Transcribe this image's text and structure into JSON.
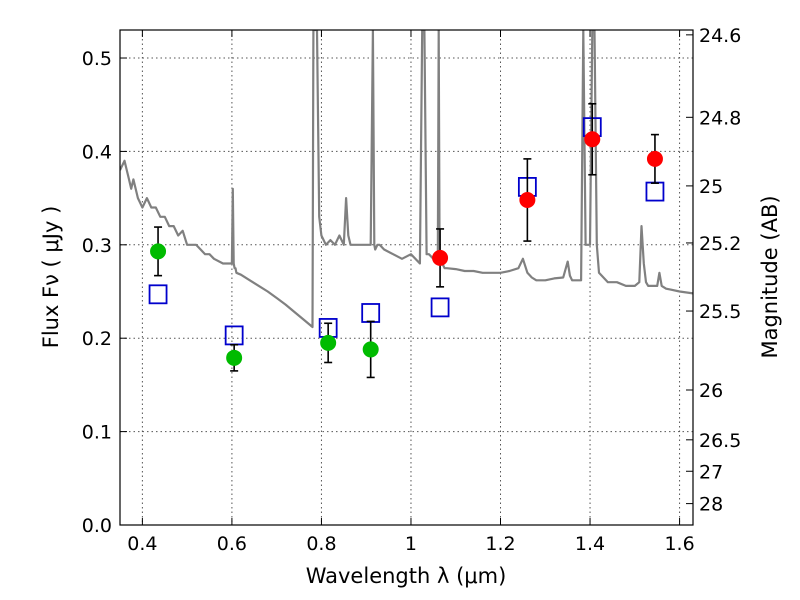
{
  "chart_data": {
    "type": "scatter",
    "xlabel": "Wavelength  λ (μm)",
    "ylabel": "Flux  Fν  ( μJy )",
    "y2label": "Magnitude (AB)",
    "xlim": [
      0.35,
      1.63
    ],
    "ylim": [
      0.0,
      0.53
    ],
    "grid": true,
    "x_ticks": [
      {
        "value": 0.4,
        "label": "0.4"
      },
      {
        "value": 0.6,
        "label": "0.6"
      },
      {
        "value": 0.8,
        "label": "0.8"
      },
      {
        "value": 1.0,
        "label": "1"
      },
      {
        "value": 1.2,
        "label": "1.2"
      },
      {
        "value": 1.4,
        "label": "1.4"
      },
      {
        "value": 1.6,
        "label": "1.6"
      }
    ],
    "y_ticks": [
      {
        "value": 0.0,
        "label": "0.0"
      },
      {
        "value": 0.1,
        "label": "0.1"
      },
      {
        "value": 0.2,
        "label": "0.2"
      },
      {
        "value": 0.3,
        "label": "0.3"
      },
      {
        "value": 0.4,
        "label": "0.4"
      },
      {
        "value": 0.5,
        "label": "0.5"
      }
    ],
    "y2_ticks": [
      {
        "value": 24.6,
        "label": "24.6"
      },
      {
        "value": 24.8,
        "label": "24.8"
      },
      {
        "value": 25.0,
        "label": "25"
      },
      {
        "value": 25.2,
        "label": "25.2"
      },
      {
        "value": 25.5,
        "label": "25.5"
      },
      {
        "value": 26.0,
        "label": "26"
      },
      {
        "value": 26.5,
        "label": "26.5"
      },
      {
        "value": 27.0,
        "label": "27"
      },
      {
        "value": 28.0,
        "label": "28"
      }
    ],
    "series": [
      {
        "name": "model-spectrum",
        "kind": "line",
        "color": "#808080",
        "x": [
          0.35,
          0.36,
          0.37,
          0.375,
          0.38,
          0.39,
          0.4,
          0.41,
          0.42,
          0.43,
          0.44,
          0.45,
          0.46,
          0.47,
          0.48,
          0.49,
          0.5,
          0.52,
          0.54,
          0.55,
          0.56,
          0.58,
          0.59,
          0.6,
          0.602,
          0.604,
          0.606,
          0.608,
          0.61,
          0.62,
          0.64,
          0.66,
          0.68,
          0.7,
          0.72,
          0.74,
          0.76,
          0.78,
          0.782,
          0.785,
          0.79,
          0.795,
          0.8,
          0.81,
          0.82,
          0.83,
          0.84,
          0.85,
          0.855,
          0.86,
          0.865,
          0.87,
          0.88,
          0.89,
          0.9,
          0.91,
          0.915,
          0.918,
          0.92,
          0.925,
          0.93,
          0.94,
          0.96,
          0.98,
          1.0,
          1.02,
          1.025,
          1.03,
          1.035,
          1.04,
          1.05,
          1.06,
          1.062,
          1.064,
          1.07,
          1.075,
          1.08,
          1.1,
          1.12,
          1.14,
          1.16,
          1.18,
          1.2,
          1.22,
          1.24,
          1.25,
          1.26,
          1.27,
          1.28,
          1.3,
          1.32,
          1.34,
          1.35,
          1.355,
          1.36,
          1.37,
          1.38,
          1.385,
          1.39,
          1.395,
          1.4,
          1.405,
          1.41,
          1.415,
          1.42,
          1.44,
          1.46,
          1.48,
          1.5,
          1.51,
          1.515,
          1.52,
          1.525,
          1.53,
          1.54,
          1.55,
          1.555,
          1.56,
          1.57,
          1.58,
          1.6,
          1.63
        ],
        "y": [
          0.38,
          0.39,
          0.37,
          0.36,
          0.37,
          0.35,
          0.34,
          0.35,
          0.34,
          0.34,
          0.33,
          0.33,
          0.32,
          0.32,
          0.31,
          0.315,
          0.3,
          0.3,
          0.29,
          0.29,
          0.285,
          0.28,
          0.28,
          0.28,
          0.36,
          0.28,
          0.275,
          0.275,
          0.27,
          0.268,
          0.262,
          0.256,
          0.25,
          0.243,
          0.236,
          0.228,
          0.22,
          0.212,
          0.53,
          0.53,
          0.53,
          0.33,
          0.31,
          0.3,
          0.305,
          0.3,
          0.31,
          0.3,
          0.35,
          0.31,
          0.3,
          0.3,
          0.3,
          0.3,
          0.3,
          0.3,
          0.53,
          0.3,
          0.295,
          0.3,
          0.3,
          0.295,
          0.29,
          0.285,
          0.29,
          0.28,
          0.53,
          0.53,
          0.29,
          0.29,
          0.285,
          0.28,
          0.53,
          0.28,
          0.28,
          0.275,
          0.275,
          0.274,
          0.272,
          0.272,
          0.27,
          0.27,
          0.27,
          0.272,
          0.275,
          0.285,
          0.27,
          0.265,
          0.262,
          0.262,
          0.264,
          0.265,
          0.282,
          0.267,
          0.262,
          0.262,
          0.262,
          0.53,
          0.3,
          0.3,
          0.3,
          0.53,
          0.53,
          0.3,
          0.27,
          0.26,
          0.26,
          0.256,
          0.256,
          0.26,
          0.32,
          0.28,
          0.26,
          0.256,
          0.256,
          0.256,
          0.27,
          0.256,
          0.253,
          0.252,
          0.25,
          0.248
        ]
      },
      {
        "name": "model-bandpass",
        "kind": "marker",
        "marker": "open-square",
        "color": "#0000cc",
        "x": [
          0.435,
          0.605,
          0.815,
          0.91,
          1.065,
          1.26,
          1.405,
          1.545
        ],
        "y": [
          0.247,
          0.203,
          0.211,
          0.227,
          0.233,
          0.362,
          0.426,
          0.357
        ]
      },
      {
        "name": "observed-optical",
        "kind": "marker",
        "marker": "filled-circle",
        "color": "#00bb00",
        "x": [
          0.435,
          0.605,
          0.815,
          0.91
        ],
        "y": [
          0.293,
          0.179,
          0.195,
          0.188
        ],
        "err": [
          0.026,
          0.014,
          0.021,
          0.03
        ]
      },
      {
        "name": "observed-nir",
        "kind": "marker",
        "marker": "filled-circle",
        "color": "#ff0000",
        "x": [
          1.065,
          1.26,
          1.405,
          1.545
        ],
        "y": [
          0.286,
          0.348,
          0.413,
          0.392
        ],
        "err": [
          0.031,
          0.044,
          0.038,
          0.026
        ]
      }
    ]
  }
}
